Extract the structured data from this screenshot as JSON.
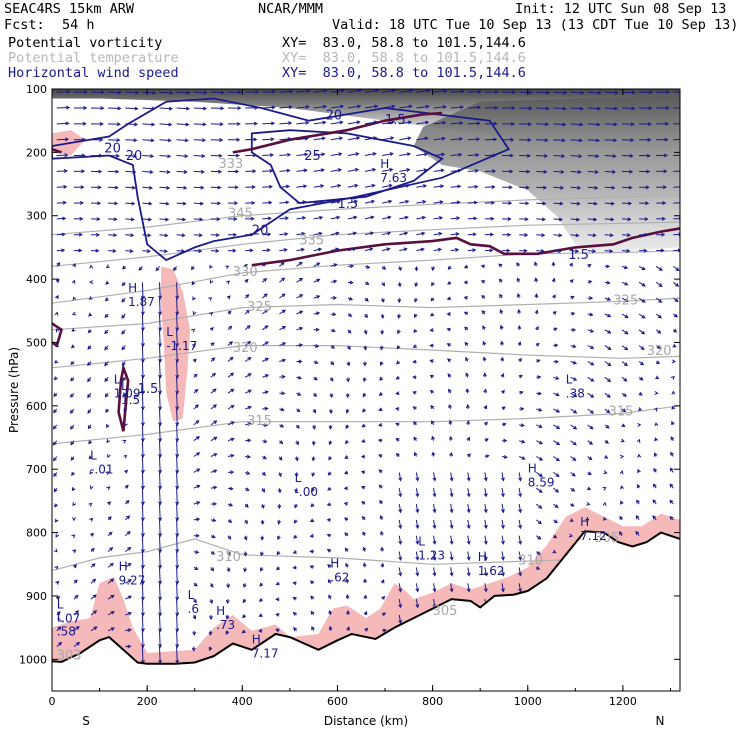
{
  "header": {
    "model": "SEAC4RS 15km ARW",
    "org": "NCAR/MMM",
    "init": "Init: 12 UTC Sun 08 Sep 13",
    "fcst_label": "Fcst:",
    "fcst_value": "54 h",
    "valid": "Valid: 18 UTC Tue 10 Sep 13 (13 CDT Tue 10 Sep 13)",
    "fields": [
      {
        "name": "Potential vorticity",
        "xy": "XY=  83.0, 58.8 to 101.5,144.6"
      },
      {
        "name": "Potential temperature",
        "xy": "XY=  83.0, 58.8 to 101.5,144.6"
      },
      {
        "name": "Horizontal wind speed",
        "xy": "XY=  83.0, 58.8 to 101.5,144.6"
      }
    ]
  },
  "colors": {
    "pv": "#5a0f3c",
    "theta": "#b0b0b0",
    "wind": "#1a1a8c",
    "shade_pink": "#f6b9b9",
    "terrain": "#000000"
  },
  "chart_data": {
    "type": "cross-section",
    "xlabel": "Distance (km)",
    "ylabel": "Pressure (hPa)",
    "xlim": [
      0,
      1320
    ],
    "ylim": [
      1050,
      100
    ],
    "x_ticks": [
      0,
      200,
      400,
      600,
      800,
      1000,
      1200
    ],
    "y_ticks": [
      100,
      200,
      300,
      400,
      500,
      600,
      700,
      800,
      900,
      1000
    ],
    "end_labels": {
      "left": "S",
      "right": "N"
    },
    "terrain_surface_hpa": [
      [
        0,
        1003
      ],
      [
        20,
        1004
      ],
      [
        60,
        990
      ],
      [
        100,
        970
      ],
      [
        120,
        965
      ],
      [
        150,
        985
      ],
      [
        180,
        1005
      ],
      [
        200,
        1007
      ],
      [
        260,
        1007
      ],
      [
        300,
        1005
      ],
      [
        340,
        995
      ],
      [
        380,
        975
      ],
      [
        420,
        985
      ],
      [
        440,
        975
      ],
      [
        470,
        960
      ],
      [
        500,
        965
      ],
      [
        530,
        975
      ],
      [
        560,
        985
      ],
      [
        600,
        970
      ],
      [
        630,
        960
      ],
      [
        680,
        968
      ],
      [
        720,
        950
      ],
      [
        760,
        935
      ],
      [
        800,
        920
      ],
      [
        840,
        905
      ],
      [
        880,
        908
      ],
      [
        900,
        918
      ],
      [
        930,
        900
      ],
      [
        970,
        898
      ],
      [
        1000,
        892
      ],
      [
        1040,
        872
      ],
      [
        1080,
        835
      ],
      [
        1120,
        798
      ],
      [
        1160,
        800
      ],
      [
        1190,
        815
      ],
      [
        1220,
        822
      ],
      [
        1250,
        815
      ],
      [
        1280,
        800
      ],
      [
        1320,
        810
      ]
    ],
    "theta_contours": [
      {
        "label": "345",
        "points": [
          [
            0,
            330
          ],
          [
            200,
            318
          ],
          [
            400,
            300
          ],
          [
            600,
            290
          ],
          [
            800,
            282
          ],
          [
            1000,
            275
          ],
          [
            1200,
            270
          ],
          [
            1320,
            268
          ]
        ],
        "label_at": [
          370,
          303
        ]
      },
      {
        "label": "335",
        "points": [
          [
            0,
            380
          ],
          [
            200,
            365
          ],
          [
            400,
            345
          ],
          [
            600,
            330
          ],
          [
            800,
            322
          ],
          [
            1000,
            315
          ],
          [
            1200,
            312
          ],
          [
            1320,
            310
          ]
        ],
        "label_at": [
          540,
          340
        ]
      },
      {
        "label": "330",
        "points": [
          [
            0,
            438
          ],
          [
            200,
            418
          ],
          [
            400,
            390
          ],
          [
            600,
            378
          ],
          [
            800,
            370
          ],
          [
            1000,
            360
          ],
          [
            1200,
            358
          ],
          [
            1320,
            355
          ]
        ],
        "label_at": [
          400,
          392
        ]
      },
      {
        "label": "325",
        "points": [
          [
            0,
            480
          ],
          [
            200,
            470
          ],
          [
            400,
            445
          ],
          [
            600,
            440
          ],
          [
            800,
            445
          ],
          [
            1000,
            440
          ],
          [
            1200,
            435
          ],
          [
            1320,
            430
          ]
        ],
        "label_at": [
          420,
          445
        ]
      },
      {
        "label": "320",
        "points": [
          [
            0,
            540
          ],
          [
            200,
            525
          ],
          [
            400,
            505
          ],
          [
            600,
            505
          ],
          [
            800,
            512
          ],
          [
            1000,
            520
          ],
          [
            1200,
            525
          ],
          [
            1320,
            522
          ]
        ],
        "label_at": [
          390,
          510
        ]
      },
      {
        "label": "315",
        "points": [
          [
            0,
            660
          ],
          [
            200,
            645
          ],
          [
            400,
            625
          ],
          [
            600,
            625
          ],
          [
            800,
            625
          ],
          [
            1000,
            620
          ],
          [
            1200,
            612
          ],
          [
            1320,
            600
          ]
        ],
        "label_at": [
          420,
          625
        ]
      },
      {
        "label": "310",
        "points": [
          [
            0,
            860
          ],
          [
            100,
            840
          ],
          [
            200,
            830
          ],
          [
            300,
            810
          ],
          [
            400,
            835
          ],
          [
            600,
            840
          ],
          [
            800,
            850
          ],
          [
            1000,
            845
          ],
          [
            1200,
            840
          ],
          [
            1320,
            835
          ]
        ],
        "label_at": [
          360,
          840
        ]
      }
    ],
    "theta_labels": [
      {
        "text": "345",
        "at": [
          370,
          303
        ]
      },
      {
        "text": "335",
        "at": [
          520,
          345
        ]
      },
      {
        "text": "330",
        "at": [
          380,
          395
        ]
      },
      {
        "text": "325",
        "at": [
          410,
          450
        ]
      },
      {
        "text": "320",
        "at": [
          380,
          515
        ]
      },
      {
        "text": "315",
        "at": [
          410,
          630
        ]
      },
      {
        "text": "310",
        "at": [
          345,
          845
        ]
      },
      {
        "text": "325",
        "at": [
          1180,
          440
        ]
      },
      {
        "text": "320",
        "at": [
          1250,
          520
        ]
      },
      {
        "text": "315",
        "at": [
          1170,
          615
        ]
      },
      {
        "text": "310",
        "at": [
          980,
          850
        ]
      },
      {
        "text": "305",
        "at": [
          1140,
          815
        ]
      },
      {
        "text": "305",
        "at": [
          800,
          930
        ]
      },
      {
        "text": "303",
        "at": [
          10,
          1000
        ]
      },
      {
        "text": "333",
        "at": [
          350,
          225
        ]
      }
    ],
    "wind_speed_contours": [
      {
        "value": 20,
        "points": [
          [
            0,
            190
          ],
          [
            120,
            175
          ],
          [
            160,
            155
          ],
          [
            240,
            120
          ],
          [
            340,
            115
          ],
          [
            440,
            130
          ],
          [
            540,
            150
          ],
          [
            700,
            130
          ],
          [
            920,
            150
          ],
          [
            960,
            195
          ],
          [
            820,
            240
          ],
          [
            640,
            270
          ],
          [
            500,
            290
          ],
          [
            420,
            330
          ],
          [
            340,
            340
          ],
          [
            300,
            350
          ],
          [
            240,
            370
          ],
          [
            200,
            345
          ],
          [
            180,
            270
          ],
          [
            170,
            220
          ],
          [
            120,
            205
          ],
          [
            0,
            210
          ]
        ]
      },
      {
        "value": 25,
        "points": [
          [
            420,
            170
          ],
          [
            500,
            165
          ],
          [
            620,
            170
          ],
          [
            760,
            190
          ],
          [
            820,
            210
          ],
          [
            760,
            245
          ],
          [
            660,
            270
          ],
          [
            520,
            280
          ],
          [
            480,
            255
          ],
          [
            460,
            220
          ],
          [
            420,
            200
          ],
          [
            420,
            170
          ]
        ]
      }
    ],
    "wind_speed_labels": [
      {
        "text": "20",
        "at": [
          110,
          200
        ]
      },
      {
        "text": "20",
        "at": [
          155,
          212
        ]
      },
      {
        "text": "20",
        "at": [
          575,
          148
        ]
      },
      {
        "text": "20",
        "at": [
          420,
          330
        ]
      },
      {
        "text": "25",
        "at": [
          530,
          212
        ]
      },
      {
        "text": "1.5",
        "at": [
          700,
          155
        ]
      },
      {
        "text": "1.5",
        "at": [
          600,
          288
        ]
      }
    ],
    "pv_contours": [
      {
        "value": 1.5,
        "label": "1.5",
        "points": [
          [
            20,
            200
          ],
          [
            0,
            195
          ]
        ]
      },
      {
        "value": 1.5,
        "label": "1.5",
        "points": [
          [
            380,
            200
          ],
          [
            420,
            195
          ],
          [
            500,
            180
          ],
          [
            620,
            165
          ],
          [
            700,
            150
          ],
          [
            780,
            140
          ],
          [
            820,
            138
          ]
        ]
      },
      {
        "value": 1.5,
        "label": "1.5",
        "points": [
          [
            420,
            378
          ],
          [
            500,
            370
          ],
          [
            600,
            355
          ],
          [
            700,
            345
          ],
          [
            800,
            340
          ],
          [
            850,
            335
          ],
          [
            880,
            345
          ],
          [
            920,
            348
          ],
          [
            950,
            360
          ],
          [
            1020,
            360
          ],
          [
            1100,
            350
          ],
          [
            1180,
            345
          ],
          [
            1220,
            335
          ],
          [
            1280,
            325
          ],
          [
            1320,
            320
          ]
        ]
      }
    ],
    "pv_labels": [
      {
        "text": "1.5",
        "at": [
          1085,
          368
        ]
      },
      {
        "text": "1.5",
        "at": [
          180,
          580
        ]
      }
    ],
    "extrema": [
      {
        "kind": "H",
        "value": "1.87",
        "at": [
          160,
          420
        ]
      },
      {
        "kind": "L",
        "value": "-1.17",
        "at": [
          240,
          490
        ]
      },
      {
        "kind": "L",
        "value": "1.09",
        "at": [
          130,
          565
        ]
      },
      {
        "kind": "L",
        "value": "-.01",
        "at": [
          80,
          685
        ]
      },
      {
        "kind": "L",
        "value": ".38",
        "at": [
          1080,
          565
        ]
      },
      {
        "kind": "H",
        "value": "8.59",
        "at": [
          1000,
          705
        ]
      },
      {
        "kind": "L",
        "value": "-.00",
        "at": [
          510,
          720
        ]
      },
      {
        "kind": "L",
        "value": "1.23",
        "at": [
          770,
          820
        ]
      },
      {
        "kind": "H",
        "value": "1.62",
        "at": [
          895,
          845
        ]
      },
      {
        "kind": "H",
        "value": ".62",
        "at": [
          585,
          855
        ]
      },
      {
        "kind": "H",
        "value": "9.27",
        "at": [
          140,
          860
        ]
      },
      {
        "kind": "L",
        "value": ".6",
        "at": [
          285,
          905
        ]
      },
      {
        "kind": "H",
        "value": ".73",
        "at": [
          345,
          930
        ]
      },
      {
        "kind": "L",
        "value": "-.07",
        "at": [
          10,
          920
        ]
      },
      {
        "kind": "L",
        "value": ".58",
        "at": [
          10,
          940
        ]
      },
      {
        "kind": "H",
        "value": "7.17",
        "at": [
          420,
          975
        ]
      },
      {
        "kind": "H",
        "value": "7.63",
        "at": [
          690,
          225
        ]
      },
      {
        "kind": "H",
        "value": "7.12",
        "at": [
          1110,
          790
        ]
      },
      {
        "kind": "L",
        "value": "1.5",
        "at": [
          145,
          575
        ]
      }
    ]
  }
}
